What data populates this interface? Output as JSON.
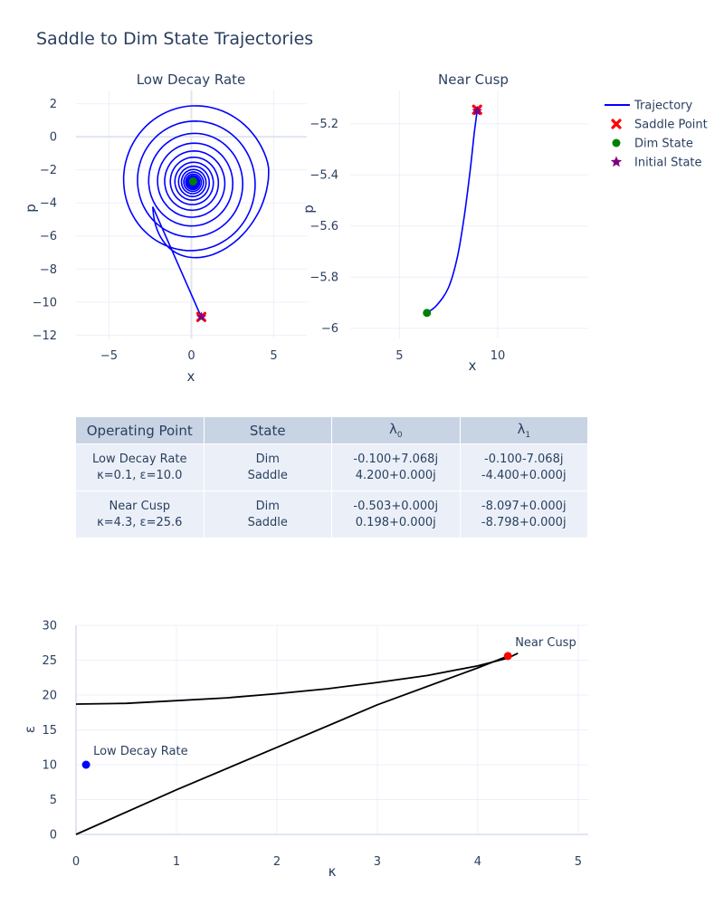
{
  "title": "Saddle to Dim State Trajectories",
  "colors": {
    "trajectory": "#0000ff",
    "saddle": "#ff0000",
    "dim": "#008000",
    "initial": "#800080",
    "curve": "#000000",
    "low_point": "#0000ff",
    "cusp_point": "#ff0000",
    "table_header": "#c8d4e3",
    "table_cell": "#ebf0f8",
    "grid": "#ebf0fa"
  },
  "legend": [
    {
      "label": "Trajectory",
      "symbol": "line",
      "color": "#0000ff"
    },
    {
      "label": "Saddle Point",
      "symbol": "x",
      "color": "#ff0000"
    },
    {
      "label": "Dim State",
      "symbol": "circle",
      "color": "#008000"
    },
    {
      "label": "Initial State",
      "symbol": "star",
      "color": "#800080"
    }
  ],
  "chart_data": [
    {
      "type": "line",
      "title": "Low Decay Rate",
      "xlabel": "x",
      "ylabel": "p",
      "xlim": [
        -7,
        7
      ],
      "ylim": [
        -12.2,
        2.8
      ],
      "xticks": [
        -5,
        0,
        5
      ],
      "yticks": [
        2,
        0,
        -2,
        -4,
        -6,
        -8,
        -10,
        -12
      ],
      "grid": true,
      "trajectory_model": {
        "center": [
          0.1,
          -2.75
        ],
        "start": [
          0.6,
          -10.9
        ],
        "phase_start_deg": -70,
        "x_half_width_start": 5.2,
        "p_half_height_start": 10.8,
        "turns": 18,
        "decay": 0.0089
      },
      "saddle_point": [
        0.6,
        -10.9
      ],
      "dim_state": [
        0.1,
        -2.7
      ],
      "initial_state": [
        0.6,
        -10.9
      ]
    },
    {
      "type": "line",
      "title": "Near Cusp",
      "xlabel": "x",
      "ylabel": "p",
      "xlim": [
        2.5,
        14.6
      ],
      "ylim": [
        -6.04,
        -5.07
      ],
      "xticks": [
        5,
        10
      ],
      "yticks": [
        -5.2,
        -5.4,
        -5.6,
        -5.8,
        -6
      ],
      "grid": true,
      "trajectory": [
        [
          6.4,
          -5.94
        ],
        [
          6.9,
          -5.91
        ],
        [
          7.5,
          -5.84
        ],
        [
          7.95,
          -5.72
        ],
        [
          8.3,
          -5.56
        ],
        [
          8.6,
          -5.38
        ],
        [
          8.8,
          -5.24
        ],
        [
          8.95,
          -5.15
        ]
      ],
      "saddle_point": [
        8.95,
        -5.145
      ],
      "dim_state": [
        6.4,
        -5.94
      ],
      "initial_state": [
        8.95,
        -5.15
      ]
    },
    {
      "type": "table",
      "columns": [
        "Operating Point",
        "State",
        "λ₀",
        "λ₁"
      ],
      "rows": [
        [
          [
            "Low Decay Rate",
            "κ=0.1, ε=10.0"
          ],
          [
            "Dim",
            "Saddle"
          ],
          [
            "-0.100+7.068j",
            "4.200+0.000j"
          ],
          [
            "-0.100-7.068j",
            "-4.400+0.000j"
          ]
        ],
        [
          [
            "Near Cusp",
            "κ=4.3, ε=25.6"
          ],
          [
            "Dim",
            "Saddle"
          ],
          [
            "-0.503+0.000j",
            "0.198+0.000j"
          ],
          [
            "-8.097+0.000j",
            "-8.798+0.000j"
          ]
        ]
      ]
    },
    {
      "type": "line",
      "xlabel": "κ",
      "ylabel": "ε",
      "xlim": [
        0,
        5.1
      ],
      "ylim": [
        0,
        30
      ],
      "xticks": [
        0,
        1,
        2,
        3,
        4,
        5
      ],
      "yticks": [
        0,
        5,
        10,
        15,
        20,
        25,
        30
      ],
      "grid": true,
      "curves": [
        [
          [
            0,
            18.7
          ],
          [
            0.5,
            18.8
          ],
          [
            1,
            19.2
          ],
          [
            1.5,
            19.6
          ],
          [
            2,
            20.2
          ],
          [
            2.5,
            20.9
          ],
          [
            3,
            21.8
          ],
          [
            3.5,
            22.8
          ],
          [
            4,
            24.2
          ],
          [
            4.3,
            25.3
          ],
          [
            4.4,
            26.0
          ]
        ],
        [
          [
            0,
            0
          ],
          [
            1,
            6.4
          ],
          [
            2,
            12.5
          ],
          [
            3,
            18.6
          ],
          [
            4,
            23.9
          ],
          [
            4.3,
            25.6
          ]
        ]
      ],
      "points": [
        {
          "label": "Low Decay Rate",
          "x": 0.1,
          "y": 10.0,
          "color": "#0000ff"
        },
        {
          "label": "Near Cusp",
          "x": 4.3,
          "y": 25.6,
          "color": "#ff0000"
        }
      ]
    }
  ]
}
